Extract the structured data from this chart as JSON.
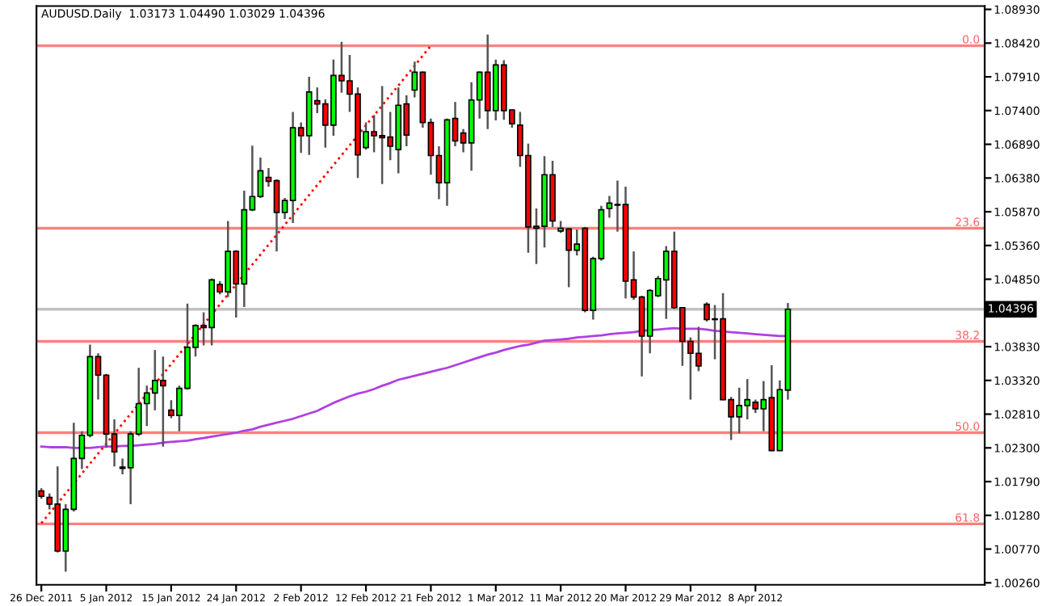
{
  "chart_data": {
    "type": "candlestick",
    "title": "AUDUSD.Daily  1.03173 1.04490 1.03029 1.04396",
    "categories": [
      "26 Dec 2011",
      null,
      null,
      null,
      null,
      null,
      null,
      null,
      "5 Jan 2012",
      null,
      null,
      null,
      null,
      null,
      null,
      null,
      "15 Jan 2012",
      null,
      null,
      null,
      null,
      null,
      null,
      null,
      "24 Jan 2012",
      null,
      null,
      null,
      null,
      null,
      null,
      null,
      "2 Feb 2012",
      null,
      null,
      null,
      null,
      null,
      null,
      null,
      "12 Feb 2012",
      null,
      null,
      null,
      null,
      null,
      null,
      null,
      "21 Feb 2012",
      null,
      null,
      null,
      null,
      null,
      null,
      null,
      "1 Mar 2012",
      null,
      null,
      null,
      null,
      null,
      null,
      null,
      "11 Mar 2012",
      null,
      null,
      null,
      null,
      null,
      null,
      null,
      "20 Mar 2012",
      null,
      null,
      null,
      null,
      null,
      null,
      null,
      "29 Mar 2012",
      null,
      null,
      null,
      null,
      null,
      null,
      null,
      "8 Apr 2012",
      null,
      null,
      null,
      null
    ],
    "series": [
      {
        "ohlc": [
          [
            1.0165,
            1.0169,
            1.0153,
            1.0157
          ],
          [
            1.0155,
            1.0161,
            1.0137,
            1.0145
          ],
          [
            1.0145,
            1.0202,
            1.0072,
            1.0074
          ],
          [
            1.0074,
            1.0145,
            1.0043,
            1.0137
          ],
          [
            1.0137,
            1.0268,
            1.0134,
            1.0214
          ],
          [
            1.0214,
            1.0255,
            1.0198,
            1.0249
          ],
          [
            1.0249,
            1.0386,
            1.0246,
            1.0368
          ],
          [
            1.0368,
            1.0373,
            1.0303,
            1.034
          ],
          [
            1.034,
            1.0342,
            1.023,
            1.0251
          ],
          [
            1.0251,
            1.0273,
            1.0202,
            1.0224
          ],
          [
            1.0201,
            1.0214,
            1.019,
            1.0199
          ],
          [
            1.02,
            1.0255,
            1.0145,
            1.0251
          ],
          [
            1.0251,
            1.0351,
            1.0248,
            1.0297
          ],
          [
            1.0297,
            1.0324,
            1.0263,
            1.0313
          ],
          [
            1.0313,
            1.0378,
            1.0287,
            1.0332
          ],
          [
            1.0332,
            1.0368,
            1.0232,
            1.0324
          ],
          [
            1.0287,
            1.0302,
            1.0275,
            1.0279
          ],
          [
            1.0279,
            1.0324,
            1.0255,
            1.032
          ],
          [
            1.032,
            1.0448,
            1.0318,
            1.0382
          ],
          [
            1.0382,
            1.0417,
            1.0368,
            1.0415
          ],
          [
            1.0415,
            1.0435,
            1.0385,
            1.0412
          ],
          [
            1.0412,
            1.0486,
            1.0385,
            1.0484
          ],
          [
            1.0477,
            1.0482,
            1.0462,
            1.0466
          ],
          [
            1.0466,
            1.0573,
            1.0458,
            1.0527
          ],
          [
            1.0527,
            1.0529,
            1.0427,
            1.0478
          ],
          [
            1.0478,
            1.0619,
            1.0443,
            1.059
          ],
          [
            1.059,
            1.0687,
            1.0588,
            1.061
          ],
          [
            1.061,
            1.0669,
            1.0608,
            1.0649
          ],
          [
            1.0639,
            1.0653,
            1.0625,
            1.0633
          ],
          [
            1.0634,
            1.0636,
            1.0527,
            1.0586
          ],
          [
            1.0586,
            1.0608,
            1.0576,
            1.0604
          ],
          [
            1.0604,
            1.0738,
            1.057,
            1.0714
          ],
          [
            1.0714,
            1.0722,
            1.0676,
            1.0702
          ],
          [
            1.0702,
            1.0791,
            1.0673,
            1.0768
          ],
          [
            1.0755,
            1.0775,
            1.0736,
            1.075
          ],
          [
            1.075,
            1.0757,
            1.0684,
            1.0718
          ],
          [
            1.0718,
            1.0817,
            1.0702,
            1.0793
          ],
          [
            1.0793,
            1.0844,
            1.0767,
            1.0785
          ],
          [
            1.0785,
            1.0824,
            1.0738,
            1.0765
          ],
          [
            1.0765,
            1.0775,
            1.0638,
            1.0673
          ],
          [
            1.0684,
            1.0722,
            1.0681,
            1.0708
          ],
          [
            1.0708,
            1.0733,
            1.0677,
            1.0702
          ],
          [
            1.0702,
            1.0777,
            1.0629,
            1.0699
          ],
          [
            1.07,
            1.0738,
            1.0665,
            1.0686
          ],
          [
            1.0681,
            1.0775,
            1.0645,
            1.0748
          ],
          [
            1.075,
            1.0763,
            1.0686,
            1.0703
          ],
          [
            1.0771,
            1.0814,
            1.076,
            1.0798
          ],
          [
            1.0798,
            1.0799,
            1.0714,
            1.0722
          ],
          [
            1.0722,
            1.0728,
            1.0643,
            1.0672
          ],
          [
            1.0672,
            1.0686,
            1.0606,
            1.0631
          ],
          [
            1.0631,
            1.0728,
            1.0596,
            1.0726
          ],
          [
            1.0728,
            1.0753,
            1.0686,
            1.0694
          ],
          [
            1.0706,
            1.0712,
            1.0677,
            1.0691
          ],
          [
            1.0691,
            1.0783,
            1.0649,
            1.0756
          ],
          [
            1.0756,
            1.0799,
            1.0728,
            1.0798
          ],
          [
            1.0798,
            1.0855,
            1.0712,
            1.074
          ],
          [
            1.074,
            1.0817,
            1.0725,
            1.0809
          ],
          [
            1.0809,
            1.0816,
            1.0726,
            1.074
          ],
          [
            1.0741,
            1.0742,
            1.0714,
            1.072
          ],
          [
            1.0718,
            1.0738,
            1.0655,
            1.0672
          ],
          [
            1.0672,
            1.069,
            1.0525,
            1.0564
          ],
          [
            1.0565,
            1.0592,
            1.0508,
            1.0562
          ],
          [
            1.0565,
            1.0671,
            1.0533,
            1.0643
          ],
          [
            1.0643,
            1.0664,
            1.0564,
            1.0573
          ],
          [
            1.0558,
            1.0573,
            1.0555,
            1.0562
          ],
          [
            1.0561,
            1.0562,
            1.0473,
            1.0529
          ],
          [
            1.0529,
            1.056,
            1.0521,
            1.0538
          ],
          [
            1.0562,
            1.0564,
            1.0435,
            1.0438
          ],
          [
            1.0438,
            1.0519,
            1.0424,
            1.0516
          ],
          [
            1.0516,
            1.0596,
            1.0513,
            1.059
          ],
          [
            1.0592,
            1.0611,
            1.0578,
            1.06
          ],
          [
            1.0598,
            1.0634,
            1.0557,
            1.0597
          ],
          [
            1.0598,
            1.0625,
            1.0456,
            1.0482
          ],
          [
            1.0484,
            1.0527,
            1.0454,
            1.0458
          ],
          [
            1.0458,
            1.046,
            1.0338,
            1.0399
          ],
          [
            1.0399,
            1.047,
            1.0373,
            1.0468
          ],
          [
            1.046,
            1.049,
            1.0458,
            1.0486
          ],
          [
            1.0484,
            1.0535,
            1.0425,
            1.0527
          ],
          [
            1.0527,
            1.0557,
            1.044,
            1.0442
          ],
          [
            1.0442,
            1.0443,
            1.0354,
            1.0391
          ],
          [
            1.0391,
            1.0397,
            1.0303,
            1.0373
          ],
          [
            1.0373,
            1.0413,
            1.0346,
            1.0354
          ],
          [
            1.0447,
            1.045,
            1.0421,
            1.0424
          ],
          [
            1.0425,
            1.0446,
            1.0364,
            1.0424
          ],
          [
            1.0425,
            1.0464,
            1.0302,
            1.0303
          ],
          [
            1.0303,
            1.0307,
            1.0242,
            1.0277
          ],
          [
            1.0277,
            1.0321,
            1.0252,
            1.0294
          ],
          [
            1.0294,
            1.0334,
            1.0273,
            1.0303
          ],
          [
            1.0299,
            1.0303,
            1.0283,
            1.0289
          ],
          [
            1.0289,
            1.0331,
            1.0255,
            1.0303
          ],
          [
            1.0306,
            1.0355,
            1.0225,
            1.0226
          ],
          [
            1.0226,
            1.0332,
            1.0225,
            1.0318
          ],
          [
            1.03173,
            1.0449,
            1.03029,
            1.04396
          ]
        ]
      },
      {
        "type": "line",
        "color": "#b040e0",
        "values": [
          1.0232,
          1.0231,
          1.0231,
          1.0231,
          1.023,
          1.023,
          1.023,
          1.0231,
          1.0232,
          1.0232,
          1.0233,
          1.0233,
          1.0234,
          1.0235,
          1.0236,
          1.0238,
          1.0239,
          1.024,
          1.0241,
          1.0243,
          1.0245,
          1.0247,
          1.0249,
          1.0251,
          1.0253,
          1.0256,
          1.0258,
          1.0262,
          1.0265,
          1.0268,
          1.0271,
          1.0274,
          1.0278,
          1.0282,
          1.0286,
          1.0292,
          1.0298,
          1.0303,
          1.0308,
          1.0312,
          1.0315,
          1.0319,
          1.0324,
          1.0328,
          1.0333,
          1.0336,
          1.0339,
          1.0342,
          1.0345,
          1.0348,
          1.0351,
          1.0355,
          1.0359,
          1.0363,
          1.0367,
          1.0371,
          1.0374,
          1.0378,
          1.0381,
          1.0384,
          1.0386,
          1.0389,
          1.0392,
          1.0393,
          1.0394,
          1.0395,
          1.0397,
          1.0398,
          1.0399,
          1.04,
          1.0402,
          1.0403,
          1.0404,
          1.0405,
          1.0407,
          1.0408,
          1.0409,
          1.041,
          1.0411,
          1.041,
          1.041,
          1.041,
          1.0409,
          1.0407,
          1.0406,
          1.0405,
          1.0404,
          1.0403,
          1.0402,
          1.0401,
          1.04,
          1.0399,
          1.0399
        ]
      },
      {
        "type": "line",
        "color": "#ff0000",
        "line_style": "dotted",
        "values": [
          1.0116,
          null,
          null,
          null,
          null,
          null,
          null,
          null,
          null,
          null,
          null,
          null,
          null,
          null,
          null,
          null,
          null,
          null,
          null,
          null,
          null,
          null,
          null,
          null,
          null,
          null,
          null,
          null,
          null,
          null,
          null,
          null,
          null,
          null,
          null,
          null,
          null,
          null,
          null,
          null,
          null,
          null,
          null,
          null,
          null,
          null,
          null,
          null,
          1.0838,
          null,
          null,
          null,
          null,
          null,
          null,
          null,
          null,
          null,
          null,
          null,
          null,
          null,
          null,
          null,
          null,
          null,
          null,
          null,
          null,
          null,
          null,
          null,
          null,
          null,
          null,
          null,
          null,
          null,
          null,
          null,
          null,
          null,
          null,
          null,
          null,
          null,
          null,
          null,
          null,
          null,
          null,
          null,
          null
        ]
      }
    ],
    "annotations": [
      {
        "text": "0.0",
        "y": 1.0838
      },
      {
        "text": "23.6",
        "y": 1.0562
      },
      {
        "text": "38.2",
        "y": 1.0391
      },
      {
        "text": "50.0",
        "y": 1.0253
      },
      {
        "text": "61.8",
        "y": 1.0115
      }
    ],
    "ref_lines": [
      {
        "axis": "y",
        "value": 1.0838,
        "color": "#ff8080"
      },
      {
        "axis": "y",
        "value": 1.0562,
        "color": "#ff8080"
      },
      {
        "axis": "y",
        "value": 1.0391,
        "color": "#ff8080"
      },
      {
        "axis": "y",
        "value": 1.0253,
        "color": "#ff8080"
      },
      {
        "axis": "y",
        "value": 1.0115,
        "color": "#ff8080"
      },
      {
        "axis": "y",
        "value": 1.04396,
        "label": "1.04396",
        "color": "#c0c0c0"
      }
    ],
    "ylim": [
      1.0023,
      1.0898
    ],
    "yticks": [
      {
        "value": 1.0893,
        "label": "1.08930"
      },
      {
        "value": 1.0842,
        "label": "1.08420"
      },
      {
        "value": 1.0791,
        "label": "1.07910"
      },
      {
        "value": 1.074,
        "label": "1.07400"
      },
      {
        "value": 1.0689,
        "label": "1.06890"
      },
      {
        "value": 1.0638,
        "label": "1.06380"
      },
      {
        "value": 1.0587,
        "label": "1.05870"
      },
      {
        "value": 1.0536,
        "label": "1.05360"
      },
      {
        "value": 1.0485,
        "label": "1.04850"
      },
      {
        "value": 1.0383,
        "label": "1.03830"
      },
      {
        "value": 1.0332,
        "label": "1.03320"
      },
      {
        "value": 1.0281,
        "label": "1.02810"
      },
      {
        "value": 1.023,
        "label": "1.02300"
      },
      {
        "value": 1.0179,
        "label": "1.01790"
      },
      {
        "value": 1.0128,
        "label": "1.01280"
      },
      {
        "value": 1.0077,
        "label": "1.00770"
      },
      {
        "value": 1.0026,
        "label": "1.00260"
      }
    ],
    "grid": false
  }
}
